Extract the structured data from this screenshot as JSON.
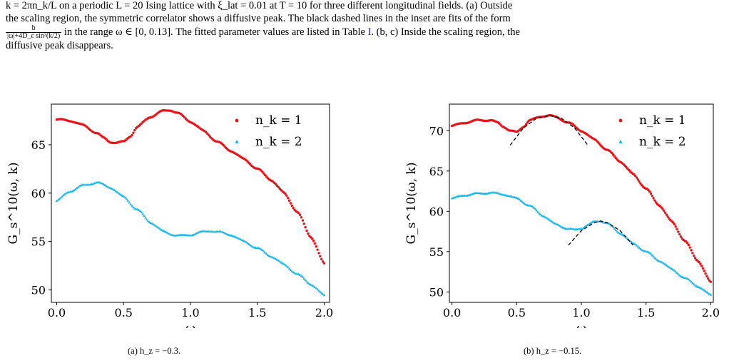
{
  "caption": {
    "line1": "k = 2πn_k/L on a periodic L = 20 Ising lattice with ξ_lat = 0.01 at T = 10 for three different longitudinal fields. (a) Outside",
    "line2_a": "the scaling region, the symmetric correlator shows a diffusive peak. The black dashed lines in the inset are fits of the form",
    "line3_frac_num": "b",
    "line3_frac_den": "|ω|+4D_ε sin²(k/2)",
    "line3_a": " in the range ω ∈ [0, 0.13]. The fitted parameter values are listed in Table ",
    "line3_ref": "I",
    "line3_b": ". (b, c) Inside the scaling region, the",
    "line4": "diffusive peak disappears."
  },
  "colors": {
    "red": "#e8141a",
    "cyan": "#17b7ea",
    "fit": "#000000"
  },
  "subcaptions": {
    "a": "(a) h_z = −0.3.",
    "b": "(b) h_z = −0.15."
  },
  "chart_data": [
    {
      "type": "scatter",
      "panel": "a",
      "xlabel": "ω",
      "ylabel": "G_s^10(ω, k)",
      "xlim": [
        -0.04,
        2.04
      ],
      "ylim": [
        48.7,
        69.2
      ],
      "xticks": [
        "0.0",
        "0.5",
        "1.0",
        "1.5",
        "2.0"
      ],
      "yticks": [
        "50",
        "55",
        "60",
        "65"
      ],
      "legend": "top-right",
      "series": [
        {
          "name": "n_k = 1",
          "color": "red",
          "marker": "circle",
          "x": [
            0.0,
            0.1,
            0.2,
            0.3,
            0.35,
            0.4,
            0.45,
            0.5,
            0.55,
            0.6,
            0.7,
            0.8,
            0.85,
            0.9,
            1.0,
            1.1,
            1.2,
            1.3,
            1.4,
            1.5,
            1.6,
            1.7,
            1.8,
            1.9,
            2.0
          ],
          "y": [
            67.6,
            67.5,
            67.0,
            66.2,
            65.7,
            65.3,
            65.2,
            65.3,
            65.9,
            66.8,
            67.9,
            68.5,
            68.6,
            68.3,
            67.4,
            66.4,
            65.3,
            64.4,
            63.5,
            62.5,
            61.4,
            60.0,
            58.0,
            55.5,
            52.7
          ]
        },
        {
          "name": "n_k = 2",
          "color": "cyan",
          "marker": "triangle",
          "x": [
            0.0,
            0.1,
            0.2,
            0.3,
            0.4,
            0.5,
            0.6,
            0.7,
            0.8,
            0.9,
            0.95,
            1.0,
            1.1,
            1.15,
            1.2,
            1.3,
            1.4,
            1.5,
            1.6,
            1.7,
            1.8,
            1.9,
            2.0
          ],
          "y": [
            59.2,
            60.2,
            60.8,
            61.1,
            60.6,
            59.6,
            58.3,
            57.0,
            56.0,
            55.6,
            55.6,
            55.7,
            56.0,
            56.1,
            56.0,
            55.7,
            55.0,
            54.3,
            53.5,
            52.6,
            51.6,
            50.6,
            49.4
          ]
        }
      ]
    },
    {
      "type": "scatter",
      "panel": "b",
      "xlabel": "ω",
      "ylabel": "G_s^10(ω, k)",
      "xlim": [
        -0.02,
        2.02
      ],
      "ylim": [
        48.7,
        73.3
      ],
      "xticks": [
        "0.0",
        "0.5",
        "1.0",
        "1.5",
        "2.0"
      ],
      "yticks": [
        "50",
        "55",
        "60",
        "65",
        "70"
      ],
      "legend": "top-right",
      "series": [
        {
          "name": "n_k = 1",
          "color": "red",
          "marker": "circle",
          "x": [
            0.0,
            0.1,
            0.2,
            0.3,
            0.35,
            0.4,
            0.45,
            0.5,
            0.55,
            0.6,
            0.7,
            0.75,
            0.8,
            0.9,
            1.0,
            1.1,
            1.2,
            1.3,
            1.4,
            1.5,
            1.6,
            1.7,
            1.8,
            1.9,
            2.0
          ],
          "y": [
            70.6,
            71.0,
            71.3,
            71.3,
            71.0,
            70.5,
            70.0,
            69.8,
            70.5,
            71.3,
            71.8,
            71.9,
            71.7,
            71.0,
            70.0,
            68.9,
            67.6,
            66.2,
            64.6,
            62.8,
            60.8,
            58.7,
            56.3,
            53.9,
            51.2
          ]
        },
        {
          "name": "n_k = 2",
          "color": "cyan",
          "marker": "triangle",
          "x": [
            0.0,
            0.1,
            0.2,
            0.3,
            0.4,
            0.5,
            0.6,
            0.7,
            0.8,
            0.9,
            0.95,
            1.0,
            1.05,
            1.1,
            1.15,
            1.2,
            1.3,
            1.4,
            1.5,
            1.6,
            1.7,
            1.8,
            1.9,
            2.0
          ],
          "y": [
            61.6,
            62.0,
            62.2,
            62.3,
            62.1,
            61.6,
            60.7,
            59.5,
            58.4,
            57.8,
            57.7,
            57.9,
            58.3,
            58.7,
            58.8,
            58.5,
            57.3,
            56.0,
            55.0,
            53.9,
            52.8,
            51.7,
            50.7,
            49.6
          ]
        }
      ],
      "fits": [
        {
          "color": "fit",
          "x": [
            0.45,
            0.55,
            0.65,
            0.75,
            0.85,
            0.95,
            1.05
          ],
          "y": [
            68.2,
            70.3,
            71.5,
            71.9,
            71.5,
            70.3,
            68.2
          ]
        },
        {
          "color": "fit",
          "x": [
            0.9,
            1.0,
            1.1,
            1.15,
            1.2,
            1.3,
            1.4
          ],
          "y": [
            55.8,
            57.6,
            58.6,
            58.8,
            58.6,
            57.6,
            55.8
          ]
        }
      ]
    }
  ]
}
